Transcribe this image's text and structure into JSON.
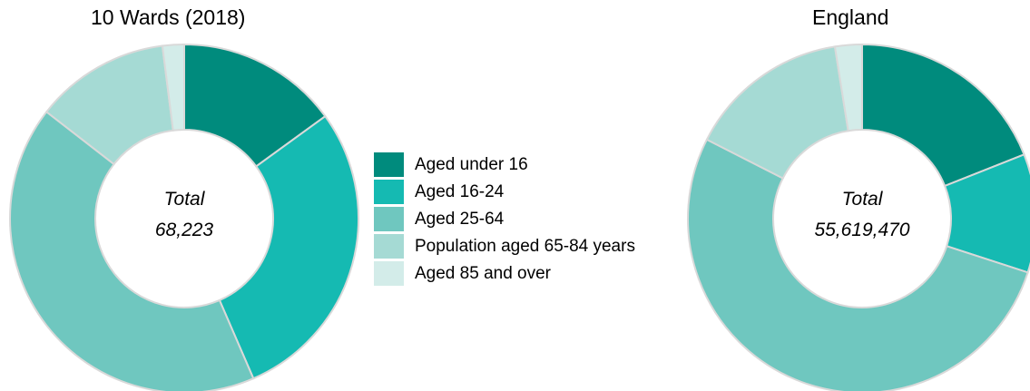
{
  "colors": [
    "#008b7d",
    "#15bab2",
    "#6fc7bf",
    "#a5dad4",
    "#d3ece9"
  ],
  "legend": [
    "Aged under 16",
    "Aged 16-24",
    "Aged 25-64",
    "Population aged 65-84 years",
    "Aged 85 and over"
  ],
  "chart_data": [
    {
      "type": "pie",
      "title": "10 Wards (2018)",
      "center_label": "Total",
      "center_value": "68,223",
      "categories": [
        "Aged under 16",
        "Aged 16-24",
        "Aged 25-64",
        "Population aged 65-84 years",
        "Aged 85 and over"
      ],
      "values": [
        15.0,
        28.5,
        42.0,
        12.5,
        2.0
      ]
    },
    {
      "type": "pie",
      "title": "England",
      "center_label": "Total",
      "center_value": "55,619,470",
      "categories": [
        "Aged under 16",
        "Aged 16-24",
        "Aged 25-64",
        "Population aged 65-84 years",
        "Aged 85 and over"
      ],
      "values": [
        19.0,
        11.0,
        52.5,
        15.0,
        2.5
      ]
    }
  ]
}
